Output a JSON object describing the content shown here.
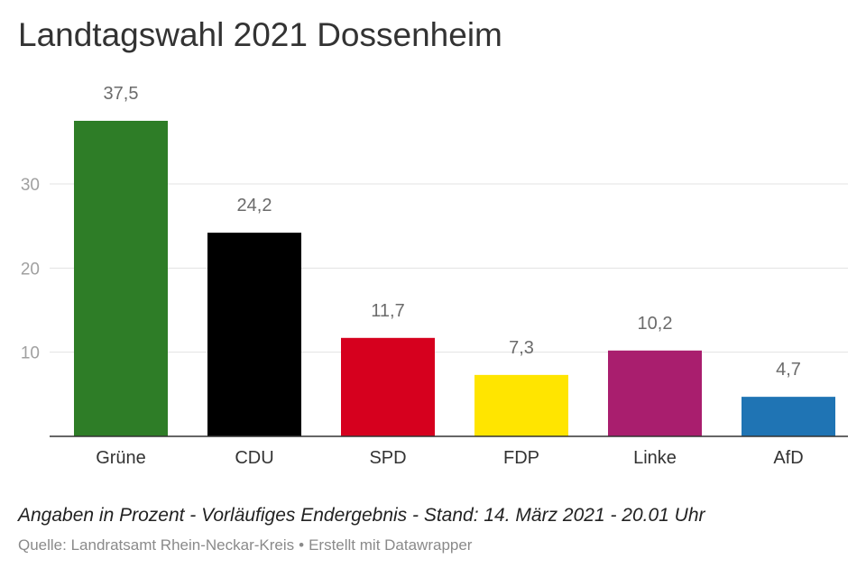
{
  "chart_data": {
    "type": "bar",
    "title": "Landtagswahl 2021 Dossenheim",
    "categories": [
      "Grüne",
      "CDU",
      "SPD",
      "FDP",
      "Linke",
      "AfD"
    ],
    "values": [
      37.5,
      24.2,
      11.7,
      7.3,
      10.2,
      4.7
    ],
    "value_labels": [
      "37,5",
      "24,2",
      "11,7",
      "7,3",
      "10,2",
      "4,7"
    ],
    "colors": [
      "#2e7d27",
      "#000000",
      "#d6001e",
      "#ffe500",
      "#a91e6e",
      "#1f74b4"
    ],
    "yticks": [
      10,
      20,
      30
    ],
    "ylim": [
      0,
      37.5
    ],
    "grid": true,
    "xlabel": "",
    "ylabel": ""
  },
  "footer": {
    "note": "Angaben in Prozent - Vorläufiges Endergebnis - Stand: 14. März 2021 - 20.01 Uhr",
    "source": "Quelle: Landratsamt Rhein-Neckar-Kreis",
    "separator": "•",
    "credit": "Erstellt mit Datawrapper"
  }
}
